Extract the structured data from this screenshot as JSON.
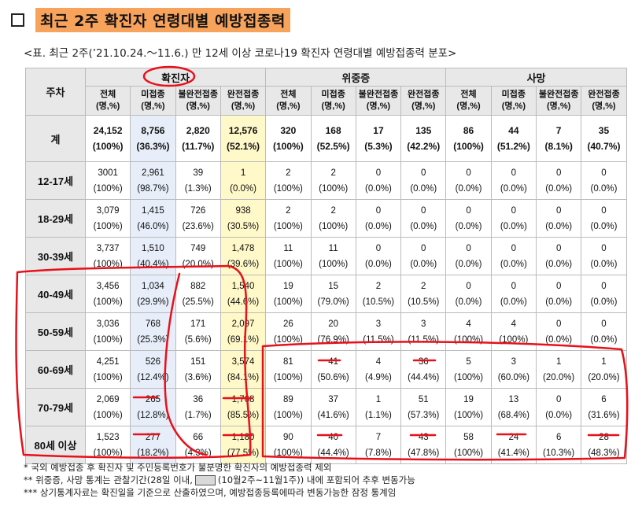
{
  "title": "최근 2주 확진자 연령대별 예방접종력",
  "subtitle": "<표. 최근 2주(’21.10.24.～11.6.) 만 12세 이상 코로나19 확진자 연령대별 예방접종력 분포>",
  "table": {
    "row_header": "주차",
    "groups": [
      "확진자",
      "위중증",
      "사망"
    ],
    "subheaders": [
      [
        "전체",
        "(명,%)"
      ],
      [
        "미접종",
        "(명,%)"
      ],
      [
        "불완전접종",
        "(명,%)"
      ],
      [
        "완전접종",
        "(명,%)"
      ],
      [
        "전체",
        "(명,%)"
      ],
      [
        "미접종",
        "(명,%)"
      ],
      [
        "불완전접종",
        "(명,%)"
      ],
      [
        "완전접종",
        "(명,%)"
      ],
      [
        "전체",
        "(명,%)"
      ],
      [
        "미접종",
        "(명,%)"
      ],
      [
        "불완전접종",
        "(명,%)"
      ],
      [
        "완전접종",
        "(명,%)"
      ]
    ],
    "rows": [
      {
        "label": "계",
        "cells": [
          [
            "24,152",
            "(100%)"
          ],
          [
            "8,756",
            "(36.3%)"
          ],
          [
            "2,820",
            "(11.7%)"
          ],
          [
            "12,576",
            "(52.1%)"
          ],
          [
            "320",
            "(100%)"
          ],
          [
            "168",
            "(52.5%)"
          ],
          [
            "17",
            "(5.3%)"
          ],
          [
            "135",
            "(42.2%)"
          ],
          [
            "86",
            "(100%)"
          ],
          [
            "44",
            "(51.2%)"
          ],
          [
            "7",
            "(8.1%)"
          ],
          [
            "35",
            "(40.7%)"
          ]
        ]
      },
      {
        "label": "12-17세",
        "cells": [
          [
            "3001",
            "(100%)"
          ],
          [
            "2,961",
            "(98.7%)"
          ],
          [
            "39",
            "(1.3%)"
          ],
          [
            "1",
            "(0.0%)"
          ],
          [
            "2",
            "(100%)"
          ],
          [
            "2",
            "(100%)"
          ],
          [
            "0",
            "(0.0%)"
          ],
          [
            "0",
            "(0.0%)"
          ],
          [
            "0",
            "(0.0%)"
          ],
          [
            "0",
            "(0.0%)"
          ],
          [
            "0",
            "(0.0%)"
          ],
          [
            "0",
            "(0.0%)"
          ]
        ]
      },
      {
        "label": "18-29세",
        "cells": [
          [
            "3,079",
            "(100%)"
          ],
          [
            "1,415",
            "(46.0%)"
          ],
          [
            "726",
            "(23.6%)"
          ],
          [
            "938",
            "(30.5%)"
          ],
          [
            "2",
            "(100%)"
          ],
          [
            "2",
            "(100%)"
          ],
          [
            "0",
            "(0.0%)"
          ],
          [
            "0",
            "(0.0%)"
          ],
          [
            "0",
            "(0.0%)"
          ],
          [
            "0",
            "(0.0%)"
          ],
          [
            "0",
            "(0.0%)"
          ],
          [
            "0",
            "(0.0%)"
          ]
        ]
      },
      {
        "label": "30-39세",
        "cells": [
          [
            "3,737",
            "(100%)"
          ],
          [
            "1,510",
            "(40.4%)"
          ],
          [
            "749",
            "(20.0%)"
          ],
          [
            "1,478",
            "(39.6%)"
          ],
          [
            "11",
            "(100%)"
          ],
          [
            "11",
            "(100%)"
          ],
          [
            "0",
            "(0.0%)"
          ],
          [
            "0",
            "(0.0%)"
          ],
          [
            "0",
            "(0.0%)"
          ],
          [
            "0",
            "(0.0%)"
          ],
          [
            "0",
            "(0.0%)"
          ],
          [
            "0",
            "(0.0%)"
          ]
        ]
      },
      {
        "label": "40-49세",
        "cells": [
          [
            "3,456",
            "(100%)"
          ],
          [
            "1,034",
            "(29.9%)"
          ],
          [
            "882",
            "(25.5%)"
          ],
          [
            "1,540",
            "(44.6%)"
          ],
          [
            "19",
            "(100%)"
          ],
          [
            "15",
            "(79.0%)"
          ],
          [
            "2",
            "(10.5%)"
          ],
          [
            "2",
            "(10.5%)"
          ],
          [
            "0",
            "(0.0%)"
          ],
          [
            "0",
            "(0.0%)"
          ],
          [
            "0",
            "(0.0%)"
          ],
          [
            "0",
            "(0.0%)"
          ]
        ]
      },
      {
        "label": "50-59세",
        "cells": [
          [
            "3,036",
            "(100%)"
          ],
          [
            "768",
            "(25.3%)"
          ],
          [
            "171",
            "(5.6%)"
          ],
          [
            "2,097",
            "(69.1%)"
          ],
          [
            "26",
            "(100%)"
          ],
          [
            "20",
            "(76.9%)"
          ],
          [
            "3",
            "(11.5%)"
          ],
          [
            "3",
            "(11.5%)"
          ],
          [
            "4",
            "(100%)"
          ],
          [
            "4",
            "(100%)"
          ],
          [
            "0",
            "(0.0%)"
          ],
          [
            "0",
            "(0.0%)"
          ]
        ]
      },
      {
        "label": "60-69세",
        "cells": [
          [
            "4,251",
            "(100%)"
          ],
          [
            "526",
            "(12.4%)"
          ],
          [
            "151",
            "(3.6%)"
          ],
          [
            "3,574",
            "(84.1%)"
          ],
          [
            "81",
            "(100%)"
          ],
          [
            "41",
            "(50.6%)"
          ],
          [
            "4",
            "(4.9%)"
          ],
          [
            "36",
            "(44.4%)"
          ],
          [
            "5",
            "(100%)"
          ],
          [
            "3",
            "(60.0%)"
          ],
          [
            "1",
            "(20.0%)"
          ],
          [
            "1",
            "(20.0%)"
          ]
        ]
      },
      {
        "label": "70-79세",
        "cells": [
          [
            "2,069",
            "(100%)"
          ],
          [
            "265",
            "(12.8%)"
          ],
          [
            "36",
            "(1.7%)"
          ],
          [
            "1,768",
            "(85.5%)"
          ],
          [
            "89",
            "(100%)"
          ],
          [
            "37",
            "(41.6%)"
          ],
          [
            "1",
            "(1.1%)"
          ],
          [
            "51",
            "(57.3%)"
          ],
          [
            "19",
            "(100%)"
          ],
          [
            "13",
            "(68.4%)"
          ],
          [
            "0",
            "(0.0%)"
          ],
          [
            "6",
            "(31.6%)"
          ]
        ]
      },
      {
        "label": "80세 이상",
        "cells": [
          [
            "1,523",
            "(100%)"
          ],
          [
            "277",
            "(18.2%)"
          ],
          [
            "66",
            "(4.3%)"
          ],
          [
            "1,180",
            "(77.5%)"
          ],
          [
            "90",
            "(100%)"
          ],
          [
            "40",
            "(44.4%)"
          ],
          [
            "7",
            "(7.8%)"
          ],
          [
            "43",
            "(47.8%)"
          ],
          [
            "58",
            "(100%)"
          ],
          [
            "24",
            "(41.4%)"
          ],
          [
            "6",
            "(10.3%)"
          ],
          [
            "28",
            "(48.3%)"
          ]
        ]
      }
    ]
  },
  "notes": {
    "n1": "* 국외 예방접종 후 확진자 및 주민등록번호가 불분명한 확진자의 예방접종력 제외",
    "n2_before": "**    위중증, 사망 통계는 관찰기간(28일 이내,",
    "n2_after": "(10월2주~11월1주)) 내에 포함되어 추후 변동가능",
    "n3": "*** 상기통계자료는 확진일을 기준으로 산출하였으며, 예방접종등록에따라 변동가능한 잠정 통계임"
  },
  "colors": {
    "title_highlight": "#f7a35c",
    "unvaccinated_col": "#e7eef9",
    "fully_vaccinated_col": "#fff8c8",
    "annotation_ink": "#e8101a"
  }
}
